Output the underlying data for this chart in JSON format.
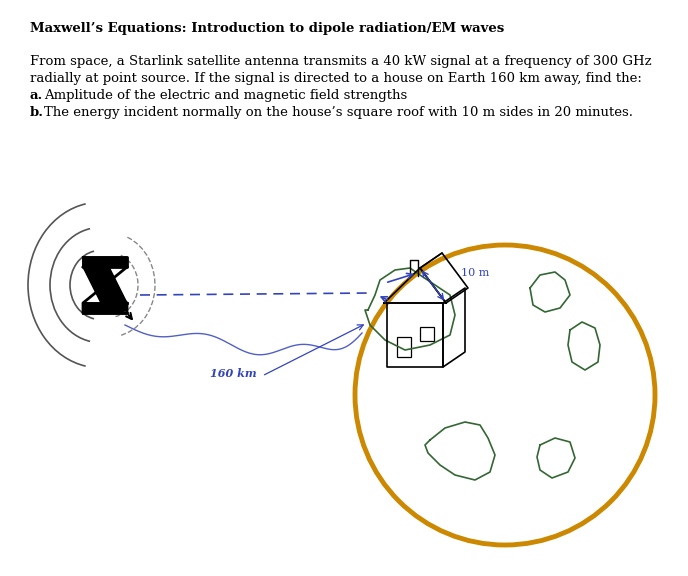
{
  "title": "Maxwell’s Equations: Introduction to dipole radiation/EM waves",
  "line1": "From space, a Starlink satellite antenna transmits a 40 kW signal at a frequency of 300 GHz",
  "line2": "radially at point source. If the signal is directed to a house on Earth 160 km away, find the:",
  "line3_bold": "a.",
  "line3_text": " Amplitude of the electric and magnetic field strengths",
  "line4_bold": "b.",
  "line4_text": " The energy incident normally on the house’s square roof with 10 m sides in 20 minutes.",
  "bg_color": "#ffffff",
  "text_color": "#000000",
  "blue_color": "#3344bb",
  "gold_color": "#cc8800",
  "green_color": "#336633"
}
